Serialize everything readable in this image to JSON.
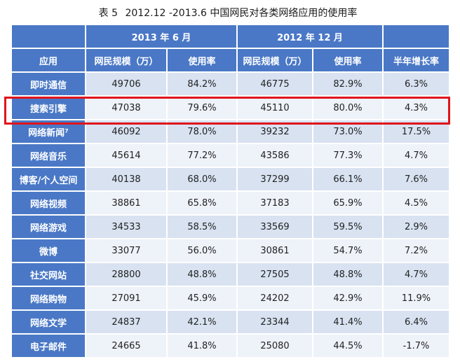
{
  "title": {
    "label": "表 5",
    "text": "2012.12 -2013.6 中国网民对各类网络应用的使用率"
  },
  "header": {
    "period_2013": "2013 年 6 月",
    "period_2012": "2012 年 12 月",
    "app_col": "应用",
    "users_col": "网民规模（万）",
    "rate_col": "使用率",
    "growth_col": "半年增长率"
  },
  "highlight_color": "#e0141b",
  "header_color": "#4a78c6",
  "rows": [
    {
      "app": "即时通信",
      "users_2013": "49706",
      "rate_2013": "84.2%",
      "users_2012": "46775",
      "rate_2012": "82.9%",
      "growth": "6.3%"
    },
    {
      "app": "搜索引擎",
      "users_2013": "47038",
      "rate_2013": "79.6%",
      "users_2012": "45110",
      "rate_2012": "80.0%",
      "growth": "4.3%"
    },
    {
      "app": "网络新闻⁷",
      "users_2013": "46092",
      "rate_2013": "78.0%",
      "users_2012": "39232",
      "rate_2012": "73.0%",
      "growth": "17.5%"
    },
    {
      "app": "网络音乐",
      "users_2013": "45614",
      "rate_2013": "77.2%",
      "users_2012": "43586",
      "rate_2012": "77.3%",
      "growth": "4.7%"
    },
    {
      "app": "博客/个人空间",
      "users_2013": "40138",
      "rate_2013": "68.0%",
      "users_2012": "37299",
      "rate_2012": "66.1%",
      "growth": "7.6%"
    },
    {
      "app": "网络视频",
      "users_2013": "38861",
      "rate_2013": "65.8%",
      "users_2012": "37183",
      "rate_2012": "65.9%",
      "growth": "4.5%"
    },
    {
      "app": "网络游戏",
      "users_2013": "34533",
      "rate_2013": "58.5%",
      "users_2012": "33569",
      "rate_2012": "59.5%",
      "growth": "2.9%"
    },
    {
      "app": "微博",
      "users_2013": "33077",
      "rate_2013": "56.0%",
      "users_2012": "30861",
      "rate_2012": "54.7%",
      "growth": "7.2%"
    },
    {
      "app": "社交网站",
      "users_2013": "28800",
      "rate_2013": "48.8%",
      "users_2012": "27505",
      "rate_2012": "48.8%",
      "growth": "4.7%"
    },
    {
      "app": "网络购物",
      "users_2013": "27091",
      "rate_2013": "45.9%",
      "users_2012": "24202",
      "rate_2012": "42.9%",
      "growth": "11.9%"
    },
    {
      "app": "网络文学",
      "users_2013": "24837",
      "rate_2013": "42.1%",
      "users_2012": "23344",
      "rate_2012": "41.4%",
      "growth": "6.4%"
    },
    {
      "app": "电子邮件",
      "users_2013": "24665",
      "rate_2013": "41.8%",
      "users_2012": "25080",
      "rate_2012": "44.5%",
      "growth": "-1.7%"
    }
  ]
}
